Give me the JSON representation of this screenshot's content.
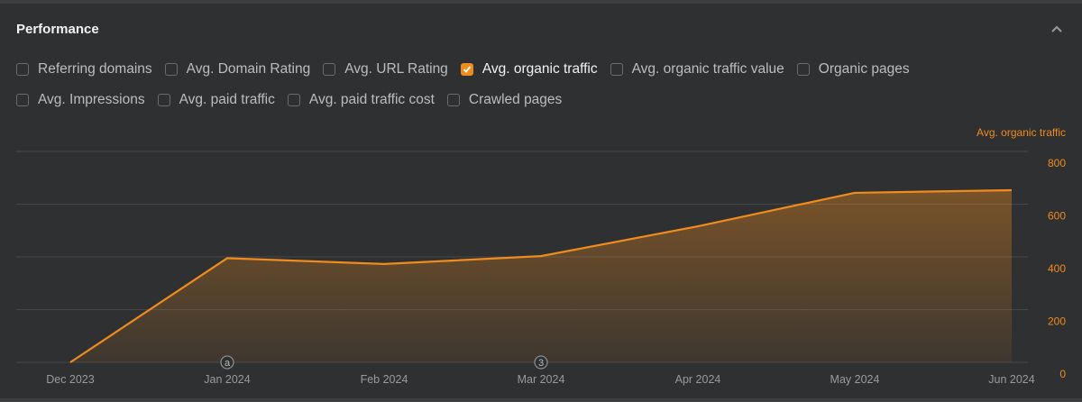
{
  "header": {
    "title": "Performance",
    "collapse_icon": "chevron-up-icon"
  },
  "metrics_row1": [
    {
      "label": "Referring domains",
      "checked": false
    },
    {
      "label": "Avg. Domain Rating",
      "checked": false
    },
    {
      "label": "Avg. URL Rating",
      "checked": false
    },
    {
      "label": "Avg. organic traffic",
      "checked": true
    },
    {
      "label": "Avg. organic traffic value",
      "checked": false
    },
    {
      "label": "Organic pages",
      "checked": false
    }
  ],
  "metrics_row2": [
    {
      "label": "Avg. Impressions",
      "checked": false
    },
    {
      "label": "Avg. paid traffic",
      "checked": false
    },
    {
      "label": "Avg. paid traffic cost",
      "checked": false
    },
    {
      "label": "Crawled pages",
      "checked": false
    }
  ],
  "colors": {
    "accent": "#f08c1e",
    "background": "#2f3031",
    "grid": "#46474a"
  },
  "chart_data": {
    "type": "area",
    "categories": [
      "Dec 2023",
      "Jan 2024",
      "Feb 2024",
      "Mar 2024",
      "Apr 2024",
      "May 2024",
      "Jun 2024"
    ],
    "series": [
      {
        "name": "Avg. organic traffic",
        "values": [
          0,
          395,
          373,
          403,
          516,
          643,
          653
        ]
      }
    ],
    "y_axis": {
      "position": "right",
      "ticks": [
        0,
        200,
        400,
        600,
        800
      ],
      "range": [
        0,
        800
      ],
      "label": "Avg. organic traffic"
    },
    "grid": true,
    "annotations": [
      {
        "x": "Jan 2024",
        "label": "a"
      },
      {
        "x": "Mar 2024",
        "label": "3"
      }
    ]
  }
}
